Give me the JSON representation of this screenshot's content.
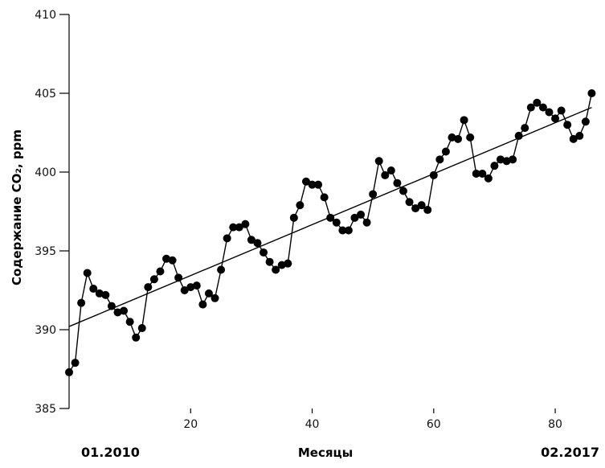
{
  "chart_data": {
    "type": "line",
    "xlabel": "Месяцы",
    "ylabel": "Содержание CO₂, ppm",
    "xlim": [
      0,
      87
    ],
    "ylim": [
      385,
      410
    ],
    "x_ticks": [
      20,
      40,
      60,
      80
    ],
    "y_ticks": [
      385,
      390,
      395,
      400,
      405,
      410
    ],
    "start_label": "01.2010",
    "end_label": "02.2017",
    "grid": false,
    "series": [
      {
        "x": [
          0,
          1,
          2,
          3,
          4,
          5,
          6,
          7,
          8,
          9,
          10,
          11,
          12,
          13,
          14,
          15,
          16,
          17,
          18,
          19,
          20,
          21,
          22,
          23,
          24,
          25,
          26,
          27,
          28,
          29,
          30,
          31,
          32,
          33,
          34,
          35,
          36,
          37,
          38,
          39,
          40,
          41,
          42,
          43,
          44,
          45,
          46,
          47,
          48,
          49,
          50,
          51,
          52,
          53,
          54,
          55,
          56,
          57,
          58,
          59,
          60,
          61,
          62,
          63,
          64,
          65,
          66,
          67,
          68,
          69,
          70,
          71,
          72,
          73,
          74,
          75,
          76,
          77,
          78,
          79,
          80,
          81,
          82,
          83,
          84,
          85,
          86
        ],
        "values": [
          387.3,
          387.9,
          391.7,
          393.6,
          392.6,
          392.3,
          392.2,
          391.5,
          391.1,
          391.2,
          390.5,
          389.5,
          390.1,
          392.7,
          393.2,
          393.7,
          394.5,
          394.4,
          393.3,
          392.5,
          392.7,
          392.8,
          391.6,
          392.3,
          392.0,
          393.8,
          395.8,
          396.5,
          396.5,
          396.7,
          395.7,
          395.5,
          394.9,
          394.3,
          393.8,
          394.1,
          394.2,
          397.1,
          397.9,
          399.4,
          399.2,
          399.2,
          398.4,
          397.1,
          396.8,
          396.3,
          396.3,
          397.1,
          397.3,
          396.8,
          398.6,
          400.7,
          399.8,
          400.1,
          399.3,
          398.8,
          398.1,
          397.7,
          397.9,
          397.6,
          399.8,
          400.8,
          401.3,
          402.2,
          402.1,
          403.3,
          402.2,
          399.9,
          399.9,
          399.6,
          400.4,
          400.8,
          400.7,
          400.8,
          402.3,
          402.8,
          404.1,
          404.4,
          404.1,
          403.8,
          403.4,
          403.9,
          403.0,
          402.1,
          402.3,
          403.2,
          405.0
        ]
      }
    ],
    "trend": {
      "x": [
        0,
        86
      ],
      "values": [
        390.2,
        404.1
      ]
    }
  }
}
